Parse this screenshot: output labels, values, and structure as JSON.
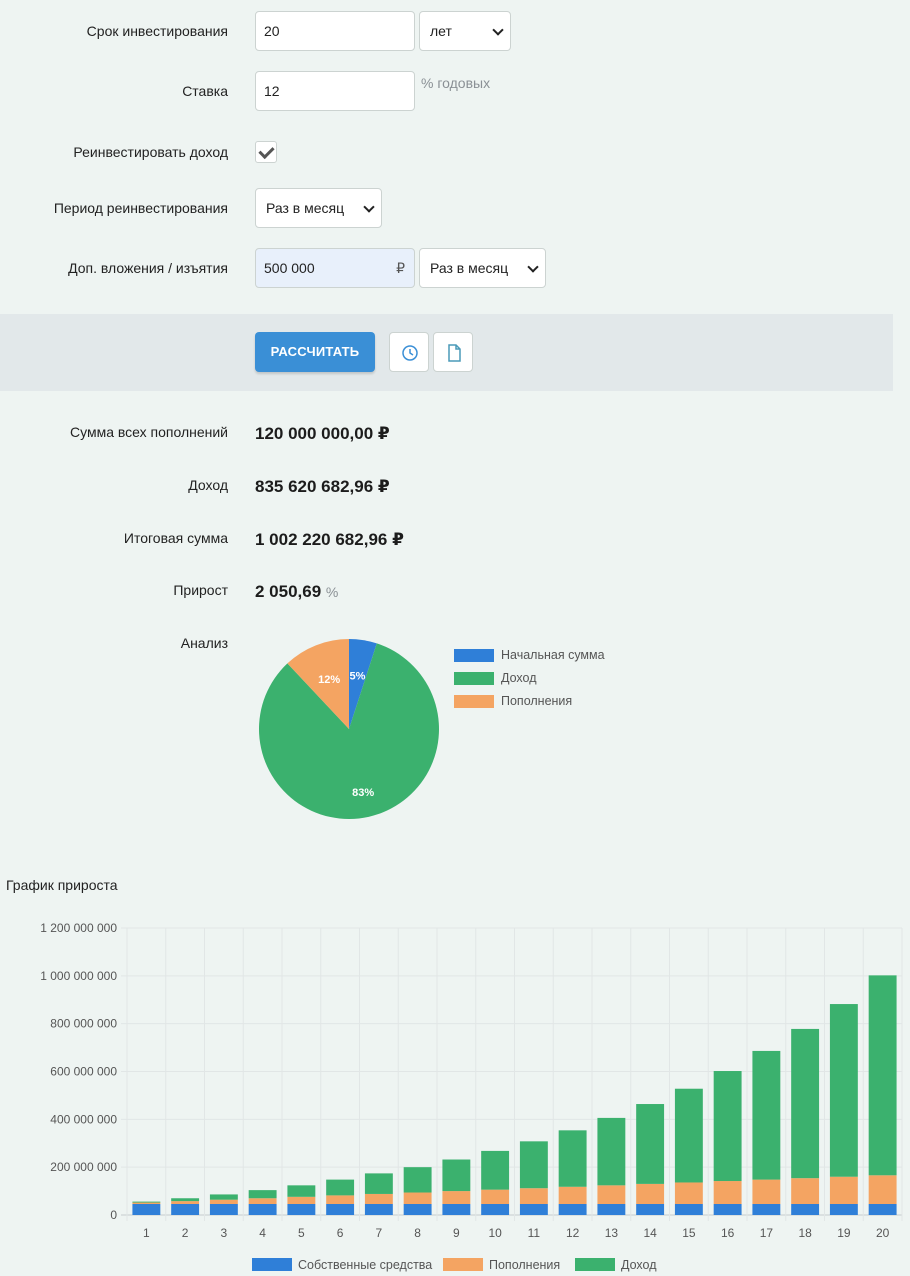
{
  "form": {
    "term": {
      "label": "Срок инвестирования",
      "value": "20",
      "unit_option": "лет"
    },
    "rate": {
      "label": "Ставка",
      "value": "12",
      "hint": "% годовых"
    },
    "reinvest": {
      "label": "Реинвестировать доход",
      "checked": true
    },
    "reinvest_period": {
      "label": "Период реинвестирования",
      "option": "Раз в месяц"
    },
    "extra": {
      "label": "Доп. вложения / изъятия",
      "value": "500 000",
      "currency": "₽",
      "option": "Раз в месяц"
    }
  },
  "toolbar": {
    "calculate_label": "РАССЧИТАТЬ",
    "history_icon": "clock-icon",
    "file_icon": "document-icon"
  },
  "results": {
    "deposits": {
      "label": "Сумма всех пополнений",
      "value": "120 000 000,00 ₽"
    },
    "income": {
      "label": "Доход",
      "value": "835 620 682,96 ₽"
    },
    "total": {
      "label": "Итоговая сумма",
      "value": "1 002 220 682,96 ₽"
    },
    "growth": {
      "label": "Прирост",
      "value": "2 050,69",
      "unit": "%"
    },
    "analysis_label": "Анализ"
  },
  "pie": {
    "slices": [
      {
        "name": "Начальная сумма",
        "percent": 5,
        "label": "5%",
        "color": "#2f7fd8"
      },
      {
        "name": "Доход",
        "percent": 83,
        "label": "83%",
        "color": "#3bb16e"
      },
      {
        "name": "Пополнения",
        "percent": 12,
        "label": "12%",
        "color": "#f4a462"
      }
    ]
  },
  "chart_data": {
    "type": "bar",
    "title": "График прироста",
    "categories": [
      "1",
      "2",
      "3",
      "4",
      "5",
      "6",
      "7",
      "8",
      "9",
      "10",
      "11",
      "12",
      "13",
      "14",
      "15",
      "16",
      "17",
      "18",
      "19",
      "20"
    ],
    "ylim": [
      0,
      1200000000
    ],
    "yticks": [
      "0",
      "200 000 000",
      "400 000 000",
      "600 000 000",
      "800 000 000",
      "1 000 000 000",
      "1 200 000 000"
    ],
    "stacked": true,
    "grid": true,
    "legend_position": "bottom",
    "series": [
      {
        "name": "Собственные средства",
        "color": "#2f7fd8",
        "values": [
          46000000,
          46000000,
          46000000,
          46000000,
          46000000,
          46000000,
          46000000,
          46000000,
          46000000,
          46000000,
          46000000,
          46000000,
          46000000,
          46000000,
          46000000,
          46000000,
          46000000,
          46000000,
          46000000,
          46000000
        ]
      },
      {
        "name": "Пополнения",
        "color": "#f4a462",
        "values": [
          6000000,
          12000000,
          18000000,
          24000000,
          30000000,
          36000000,
          42000000,
          48000000,
          54000000,
          60000000,
          66000000,
          72000000,
          78000000,
          84000000,
          90000000,
          96000000,
          102000000,
          108000000,
          114000000,
          120000000
        ]
      },
      {
        "name": "Доход",
        "color": "#3bb16e",
        "values": [
          4000000,
          12000000,
          22000000,
          34000000,
          48000000,
          66000000,
          86000000,
          106000000,
          132000000,
          162000000,
          196000000,
          236000000,
          282000000,
          334000000,
          392000000,
          460000000,
          538000000,
          624000000,
          722000000,
          836000000
        ]
      }
    ]
  }
}
